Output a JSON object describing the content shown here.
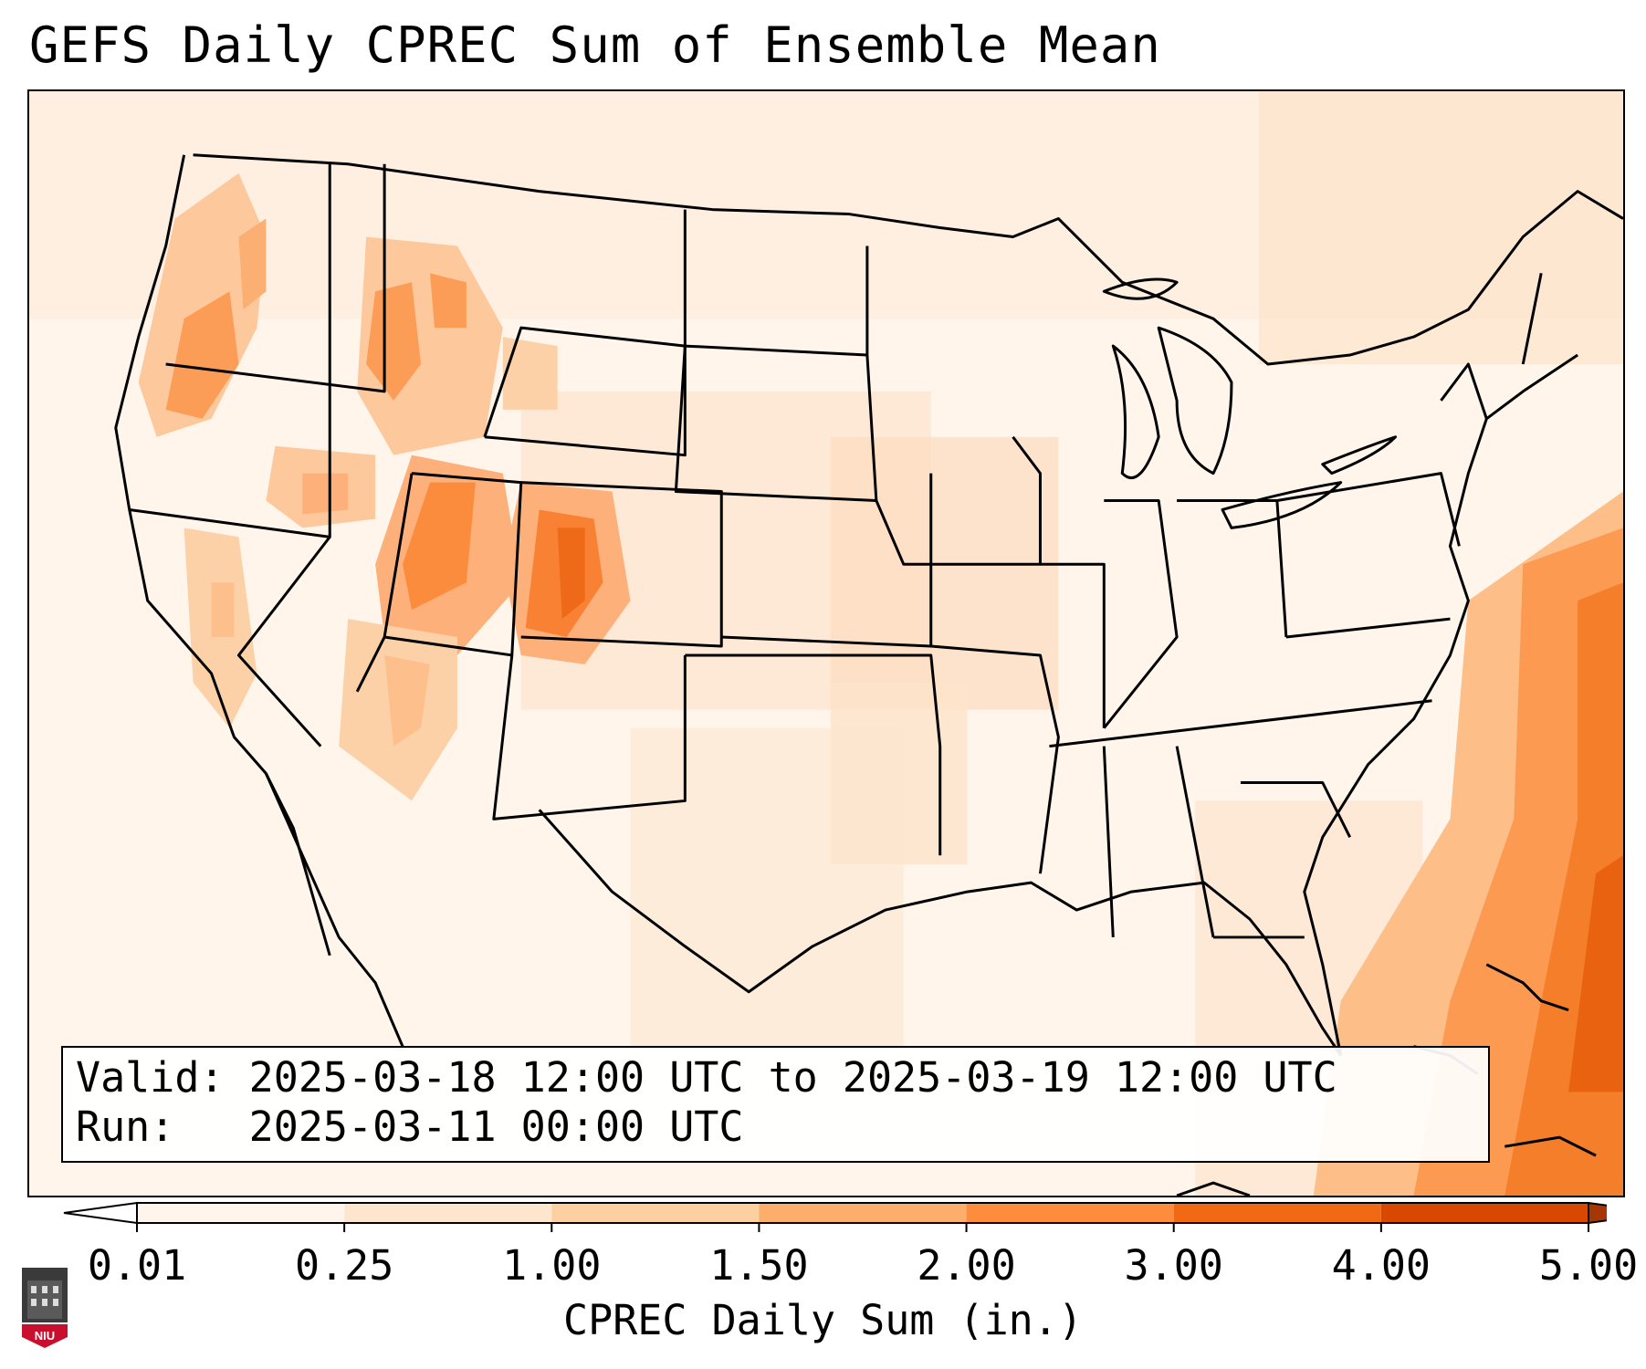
{
  "title": "GEFS Daily CPREC Sum of Ensemble Mean",
  "info": {
    "valid_line": "Valid: 2025-03-18 12:00 UTC to 2025-03-19 12:00 UTC",
    "run_line": "Run:   2025-03-11 00:00 UTC"
  },
  "colorbar": {
    "label": "CPREC Daily Sum (in.)",
    "ticks": [
      "0.01",
      "0.25",
      "1.00",
      "1.50",
      "2.00",
      "3.00",
      "4.00",
      "5.00"
    ],
    "colors": [
      "#fff5eb",
      "#fee6ce",
      "#fdd0a2",
      "#fdae6b",
      "#fd8d3c",
      "#f16913",
      "#d94801",
      "#a63603"
    ],
    "extend": "both"
  },
  "logo": {
    "text": "NIU",
    "color": "#c8102e"
  }
}
